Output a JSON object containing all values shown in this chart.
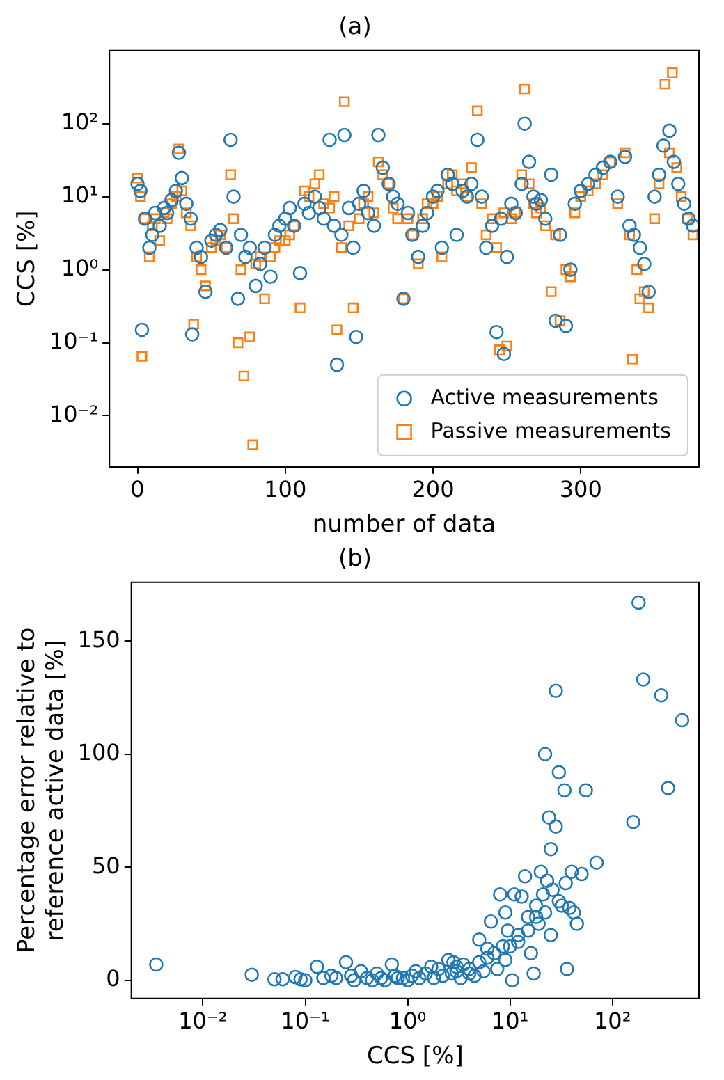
{
  "chart_data": [
    {
      "type": "scatter",
      "title": "(a)",
      "xlabel": "number of data",
      "ylabel": "CCS [%]",
      "log": "y",
      "grid": false,
      "legend": "bottom right",
      "xlim": [
        -19,
        380
      ],
      "xticks": [
        0,
        100,
        200,
        300
      ],
      "ylim": [
        0.002,
        1000
      ],
      "yticks": [
        {
          "value": 0.01,
          "label": "10⁻²"
        },
        {
          "value": 0.1,
          "label": "10⁻¹"
        },
        {
          "value": 1,
          "label": "10⁰"
        },
        {
          "value": 10,
          "label": "10¹"
        },
        {
          "value": 100,
          "label": "10²"
        }
      ],
      "series": [
        {
          "name": "Active measurements",
          "color": "#1f77b4",
          "marker": "circle",
          "x": [
            0,
            2,
            3,
            5,
            8,
            10,
            12,
            15,
            18,
            20,
            23,
            26,
            28,
            30,
            33,
            36,
            37,
            40,
            43,
            46,
            50,
            53,
            56,
            60,
            63,
            65,
            68,
            70,
            73,
            76,
            80,
            83,
            86,
            90,
            93,
            96,
            100,
            103,
            106,
            110,
            113,
            116,
            120,
            123,
            126,
            130,
            133,
            135,
            138,
            140,
            143,
            146,
            148,
            150,
            153,
            156,
            160,
            163,
            166,
            170,
            173,
            176,
            180,
            183,
            186,
            190,
            193,
            196,
            200,
            203,
            206,
            210,
            213,
            216,
            220,
            223,
            226,
            230,
            233,
            236,
            240,
            243,
            246,
            248,
            250,
            253,
            256,
            260,
            262,
            265,
            268,
            270,
            273,
            276,
            280,
            283,
            286,
            290,
            293,
            296,
            300,
            305,
            310,
            315,
            320,
            325,
            330,
            333,
            336,
            340,
            343,
            346,
            350,
            353,
            356,
            360,
            363,
            366,
            370,
            373,
            376
          ],
          "values": [
            15,
            12,
            0.15,
            5,
            2,
            3,
            6,
            4,
            7,
            6,
            9,
            12,
            40,
            18,
            8,
            5,
            0.13,
            2,
            1.5,
            0.5,
            2.5,
            3,
            3.5,
            2,
            60,
            10,
            0.4,
            3,
            1.5,
            2,
            0.6,
            1.2,
            2,
            0.8,
            3,
            4,
            5,
            7,
            4,
            0.9,
            8,
            6,
            10,
            7,
            5,
            60,
            4,
            0.05,
            3,
            70,
            7,
            2,
            0.12,
            8,
            12,
            6,
            4,
            70,
            25,
            15,
            10,
            8,
            0.4,
            6,
            3,
            1.5,
            4,
            6,
            10,
            12,
            2,
            20,
            15,
            3,
            12,
            10,
            15,
            60,
            10,
            2,
            4,
            0.14,
            5,
            0.07,
            1.5,
            8,
            6,
            15,
            100,
            30,
            10,
            8,
            9,
            5,
            20,
            0.2,
            3,
            0.17,
            1,
            8,
            12,
            15,
            20,
            25,
            30,
            10,
            35,
            4,
            3,
            2,
            1.2,
            0.5,
            10,
            20,
            50,
            80,
            30,
            15,
            8,
            5,
            4
          ]
        },
        {
          "name": "Passive measurements",
          "color": "#ff7f0e",
          "marker": "square",
          "x": [
            0,
            2,
            3,
            5,
            8,
            10,
            12,
            15,
            18,
            20,
            23,
            26,
            28,
            30,
            33,
            36,
            38,
            40,
            43,
            46,
            50,
            53,
            56,
            60,
            63,
            65,
            68,
            70,
            72,
            76,
            78,
            80,
            83,
            86,
            90,
            93,
            96,
            100,
            103,
            106,
            110,
            113,
            116,
            120,
            123,
            126,
            130,
            133,
            135,
            138,
            140,
            143,
            146,
            150,
            153,
            156,
            160,
            163,
            166,
            170,
            173,
            176,
            180,
            183,
            186,
            190,
            193,
            196,
            200,
            203,
            206,
            210,
            213,
            216,
            220,
            223,
            226,
            230,
            233,
            236,
            240,
            243,
            245,
            248,
            250,
            253,
            256,
            260,
            262,
            265,
            268,
            270,
            273,
            276,
            280,
            283,
            286,
            290,
            293,
            296,
            300,
            305,
            310,
            315,
            320,
            325,
            330,
            333,
            335,
            338,
            340,
            343,
            346,
            350,
            353,
            357,
            360,
            362,
            365,
            368,
            372,
            376
          ],
          "values": [
            18,
            10,
            0.065,
            5,
            1.5,
            4,
            5,
            2.5,
            6,
            5,
            8,
            10,
            45,
            12,
            6,
            4,
            0.18,
            1.5,
            1,
            0.6,
            2,
            2.5,
            3,
            2,
            20,
            5,
            0.1,
            1,
            0.035,
            0.12,
            0.004,
            1.2,
            1.5,
            0.4,
            1.5,
            2,
            2.5,
            2.5,
            3,
            4,
            0.3,
            12,
            10,
            15,
            20,
            8,
            7,
            10,
            0.15,
            2,
            200,
            4,
            0.3,
            5,
            8,
            10,
            6,
            30,
            20,
            15,
            7,
            5,
            0.4,
            5,
            3,
            1.2,
            5,
            8,
            8,
            10,
            1.5,
            15,
            20,
            12,
            15,
            10,
            25,
            150,
            8,
            3,
            5,
            2,
            0.08,
            6,
            0.09,
            5,
            6,
            20,
            300,
            15,
            8,
            6,
            7,
            4,
            0.5,
            3,
            0.2,
            1,
            0.8,
            6,
            10,
            12,
            15,
            20,
            30,
            8,
            40,
            3,
            0.06,
            1,
            0.4,
            0.5,
            0.3,
            5,
            15,
            350,
            40,
            500,
            25,
            10,
            5,
            3
          ]
        }
      ]
    },
    {
      "type": "scatter",
      "title": "(b)",
      "xlabel": "CCS [%]",
      "ylabel": "Percentage error relative to\nreference active data [%]",
      "log": "x",
      "grid": false,
      "xlim": [
        0.002,
        700
      ],
      "xticks": [
        {
          "value": 0.01,
          "label": "10⁻²"
        },
        {
          "value": 0.1,
          "label": "10⁻¹"
        },
        {
          "value": 1,
          "label": "10⁰"
        },
        {
          "value": 10,
          "label": "10¹"
        },
        {
          "value": 100,
          "label": "10²"
        }
      ],
      "ylim": [
        -8,
        176
      ],
      "yticks": [
        0,
        50,
        100,
        150
      ],
      "series": [
        {
          "color": "#1f77b4",
          "marker": "circle",
          "x": [
            0.0035,
            0.03,
            0.05,
            0.06,
            0.08,
            0.09,
            0.1,
            0.13,
            0.15,
            0.18,
            0.2,
            0.25,
            0.28,
            0.3,
            0.35,
            0.4,
            0.45,
            0.5,
            0.55,
            0.6,
            0.7,
            0.75,
            0.8,
            0.9,
            1,
            1.1,
            1.2,
            1.3,
            1.5,
            1.7,
            1.8,
            2,
            2.2,
            2.5,
            2.7,
            2.8,
            3,
            3,
            3.3,
            3.5,
            4,
            4,
            4.5,
            5,
            5,
            5.5,
            6,
            6,
            6.5,
            7,
            7.5,
            8,
            8.5,
            9,
            9,
            9.5,
            10,
            10.5,
            11,
            12,
            12,
            13,
            14,
            15,
            15,
            16,
            17,
            18,
            18,
            19,
            20,
            21,
            22,
            22,
            23,
            24,
            25,
            25,
            26,
            28,
            28,
            30,
            30,
            32,
            34,
            35,
            36,
            38,
            40,
            42,
            45,
            50,
            55,
            70,
            160,
            180,
            200,
            300,
            350,
            480
          ],
          "values": [
            7,
            2.5,
            0.5,
            0.5,
            1.5,
            0.5,
            0,
            6,
            1,
            2,
            1,
            8,
            2,
            0,
            4,
            1,
            0,
            3,
            1,
            0,
            7,
            2,
            1,
            1,
            0,
            2,
            4,
            1,
            3,
            6,
            1,
            5,
            2,
            9,
            3,
            8,
            4,
            6,
            1,
            7,
            5,
            3,
            2,
            8,
            18,
            4,
            10,
            14,
            26,
            12,
            5,
            38,
            15,
            9,
            30,
            22,
            15,
            0,
            38,
            20,
            17,
            37,
            46,
            28,
            22,
            12,
            3,
            33,
            28,
            25,
            48,
            38,
            100,
            30,
            44,
            72,
            58,
            20,
            40,
            128,
            68,
            92,
            35,
            33,
            84,
            43,
            5,
            32,
            48,
            30,
            25,
            47,
            84,
            52,
            70,
            167,
            133,
            126,
            85,
            115
          ]
        }
      ]
    }
  ]
}
